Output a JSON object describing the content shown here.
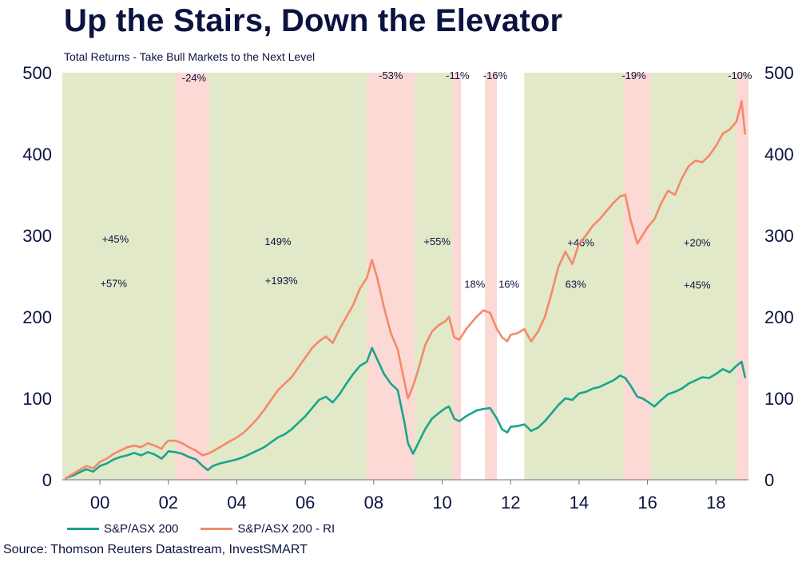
{
  "title": "Up the Stairs, Down the Elevator",
  "subtitle": "Total Returns - Take Bull Markets to the Next Level",
  "source": "Source: Thomson Reuters Datastream, InvestSMART",
  "colors": {
    "bull": "#e1e9c8",
    "bear": "#fcd9d4",
    "asx": "#19a58c",
    "asx_ri": "#f4896b",
    "text": "#0b1340"
  },
  "chart_data": {
    "type": "line",
    "xlim": [
      1998.9,
      2018.95
    ],
    "ylim": [
      0,
      500
    ],
    "x_ticks": [
      {
        "value": 2000,
        "label": "00"
      },
      {
        "value": 2002,
        "label": "02"
      },
      {
        "value": 2004,
        "label": "04"
      },
      {
        "value": 2006,
        "label": "06"
      },
      {
        "value": 2008,
        "label": "08"
      },
      {
        "value": 2010,
        "label": "10"
      },
      {
        "value": 2012,
        "label": "12"
      },
      {
        "value": 2014,
        "label": "14"
      },
      {
        "value": 2016,
        "label": "16"
      },
      {
        "value": 2018,
        "label": "18"
      }
    ],
    "y_ticks": [
      0,
      100,
      200,
      300,
      400,
      500
    ],
    "grid": false,
    "legend_position": "bottom-left",
    "regions": [
      {
        "type": "bull",
        "start": 1998.9,
        "end": 2002.2
      },
      {
        "type": "bear",
        "start": 2002.2,
        "end": 2003.2
      },
      {
        "type": "bull",
        "start": 2003.2,
        "end": 2007.8
      },
      {
        "type": "bear",
        "start": 2007.8,
        "end": 2009.2
      },
      {
        "type": "bull",
        "start": 2009.2,
        "end": 2010.3
      },
      {
        "type": "bear",
        "start": 2010.3,
        "end": 2010.55
      },
      {
        "type": "bear",
        "start": 2011.25,
        "end": 2011.6
      },
      {
        "type": "bull",
        "start": 2012.4,
        "end": 2015.3
      },
      {
        "type": "bear",
        "start": 2015.3,
        "end": 2016.1
      },
      {
        "type": "bull",
        "start": 2016.1,
        "end": 2018.6
      },
      {
        "type": "bear",
        "start": 2018.6,
        "end": 2018.95
      }
    ],
    "annotations": [
      {
        "text": "+45%",
        "x": 2000.45,
        "y": 291
      },
      {
        "text": "+57%",
        "x": 2000.4,
        "y": 237
      },
      {
        "text": "-24%",
        "x": 2002.75,
        "y": 489
      },
      {
        "text": "149%",
        "x": 2005.2,
        "y": 288
      },
      {
        "text": "+193%",
        "x": 2005.3,
        "y": 240
      },
      {
        "text": "-53%",
        "x": 2008.5,
        "y": 492
      },
      {
        "text": "+55%",
        "x": 2009.85,
        "y": 288
      },
      {
        "text": "-11%",
        "x": 2010.45,
        "y": 492
      },
      {
        "text": "18%",
        "x": 2010.95,
        "y": 236
      },
      {
        "text": "-16%",
        "x": 2011.55,
        "y": 492
      },
      {
        "text": "16%",
        "x": 2011.95,
        "y": 236
      },
      {
        "text": "+46%",
        "x": 2014.05,
        "y": 287
      },
      {
        "text": "63%",
        "x": 2013.9,
        "y": 236
      },
      {
        "text": "-19%",
        "x": 2015.6,
        "y": 492
      },
      {
        "text": "+20%",
        "x": 2017.45,
        "y": 287
      },
      {
        "text": "+45%",
        "x": 2017.45,
        "y": 235
      },
      {
        "text": "-10%",
        "x": 2018.7,
        "y": 492
      }
    ],
    "series": [
      {
        "name": "S&P/ASX 200",
        "color": "#19a58c",
        "x": [
          1999.0,
          1999.2,
          1999.4,
          1999.6,
          1999.8,
          2000.0,
          2000.2,
          2000.4,
          2000.6,
          2000.8,
          2001.0,
          2001.2,
          2001.4,
          2001.6,
          2001.8,
          2001.9,
          2002.0,
          2002.2,
          2002.4,
          2002.6,
          2002.8,
          2003.0,
          2003.15,
          2003.3,
          2003.5,
          2003.7,
          2004.0,
          2004.2,
          2004.4,
          2004.6,
          2004.8,
          2005.0,
          2005.2,
          2005.4,
          2005.6,
          2005.8,
          2006.0,
          2006.2,
          2006.4,
          2006.6,
          2006.8,
          2007.0,
          2007.2,
          2007.4,
          2007.6,
          2007.8,
          2007.95,
          2008.1,
          2008.3,
          2008.5,
          2008.7,
          2008.9,
          2009.0,
          2009.15,
          2009.3,
          2009.5,
          2009.7,
          2009.9,
          2010.1,
          2010.2,
          2010.35,
          2010.5,
          2010.7,
          2011.0,
          2011.2,
          2011.4,
          2011.6,
          2011.75,
          2011.9,
          2012.0,
          2012.2,
          2012.4,
          2012.6,
          2012.8,
          2013.0,
          2013.2,
          2013.4,
          2013.6,
          2013.8,
          2014.0,
          2014.2,
          2014.4,
          2014.6,
          2014.8,
          2015.0,
          2015.2,
          2015.35,
          2015.5,
          2015.7,
          2015.85,
          2016.0,
          2016.2,
          2016.4,
          2016.6,
          2016.8,
          2017.0,
          2017.2,
          2017.4,
          2017.6,
          2017.8,
          2018.0,
          2018.2,
          2018.4,
          2018.6,
          2018.75,
          2018.85
        ],
        "y": [
          2,
          5,
          9,
          13,
          10,
          17,
          20,
          25,
          28,
          30,
          33,
          30,
          34,
          31,
          26,
          30,
          35,
          34,
          32,
          28,
          25,
          17,
          12,
          17,
          20,
          22,
          25,
          28,
          32,
          36,
          40,
          46,
          52,
          56,
          62,
          70,
          78,
          88,
          98,
          102,
          95,
          105,
          118,
          130,
          140,
          145,
          162,
          148,
          130,
          118,
          110,
          70,
          45,
          32,
          45,
          62,
          75,
          82,
          88,
          90,
          75,
          72,
          78,
          85,
          87,
          88,
          75,
          62,
          58,
          65,
          66,
          68,
          60,
          64,
          72,
          82,
          92,
          100,
          98,
          106,
          108,
          112,
          114,
          118,
          122,
          128,
          125,
          116,
          102,
          100,
          96,
          90,
          98,
          105,
          108,
          112,
          118,
          122,
          126,
          125,
          130,
          136,
          132,
          140,
          145,
          126
        ]
      },
      {
        "name": "S&P/ASX 200 - RI",
        "color": "#f4896b",
        "x": [
          1999.0,
          1999.2,
          1999.4,
          1999.6,
          1999.8,
          2000.0,
          2000.2,
          2000.4,
          2000.6,
          2000.8,
          2001.0,
          2001.2,
          2001.4,
          2001.6,
          2001.8,
          2001.9,
          2002.0,
          2002.2,
          2002.4,
          2002.6,
          2002.8,
          2003.0,
          2003.15,
          2003.3,
          2003.5,
          2003.7,
          2004.0,
          2004.2,
          2004.4,
          2004.6,
          2004.8,
          2005.0,
          2005.2,
          2005.4,
          2005.6,
          2005.8,
          2006.0,
          2006.2,
          2006.4,
          2006.6,
          2006.8,
          2007.0,
          2007.2,
          2007.4,
          2007.6,
          2007.8,
          2007.95,
          2008.1,
          2008.3,
          2008.5,
          2008.7,
          2008.9,
          2009.0,
          2009.15,
          2009.3,
          2009.5,
          2009.7,
          2009.9,
          2010.1,
          2010.2,
          2010.35,
          2010.5,
          2010.7,
          2011.0,
          2011.2,
          2011.4,
          2011.6,
          2011.75,
          2011.9,
          2012.0,
          2012.2,
          2012.4,
          2012.6,
          2012.8,
          2013.0,
          2013.2,
          2013.4,
          2013.6,
          2013.8,
          2014.0,
          2014.2,
          2014.4,
          2014.6,
          2014.8,
          2015.0,
          2015.2,
          2015.35,
          2015.5,
          2015.7,
          2015.85,
          2016.0,
          2016.2,
          2016.4,
          2016.6,
          2016.8,
          2017.0,
          2017.2,
          2017.4,
          2017.6,
          2017.8,
          2018.0,
          2018.2,
          2018.4,
          2018.6,
          2018.75,
          2018.85
        ],
        "y": [
          2,
          7,
          12,
          17,
          14,
          22,
          26,
          32,
          36,
          40,
          42,
          40,
          45,
          42,
          38,
          44,
          48,
          48,
          45,
          40,
          36,
          30,
          32,
          35,
          40,
          45,
          52,
          58,
          66,
          75,
          86,
          98,
          110,
          118,
          126,
          138,
          150,
          162,
          170,
          176,
          168,
          185,
          200,
          215,
          235,
          248,
          270,
          248,
          212,
          180,
          160,
          120,
          100,
          115,
          135,
          165,
          182,
          190,
          195,
          200,
          175,
          172,
          185,
          200,
          208,
          205,
          185,
          175,
          170,
          178,
          180,
          185,
          170,
          182,
          200,
          230,
          262,
          280,
          265,
          290,
          300,
          312,
          320,
          330,
          340,
          348,
          350,
          320,
          290,
          300,
          310,
          320,
          340,
          355,
          350,
          370,
          385,
          392,
          390,
          398,
          410,
          425,
          430,
          440,
          465,
          425
        ]
      }
    ]
  }
}
